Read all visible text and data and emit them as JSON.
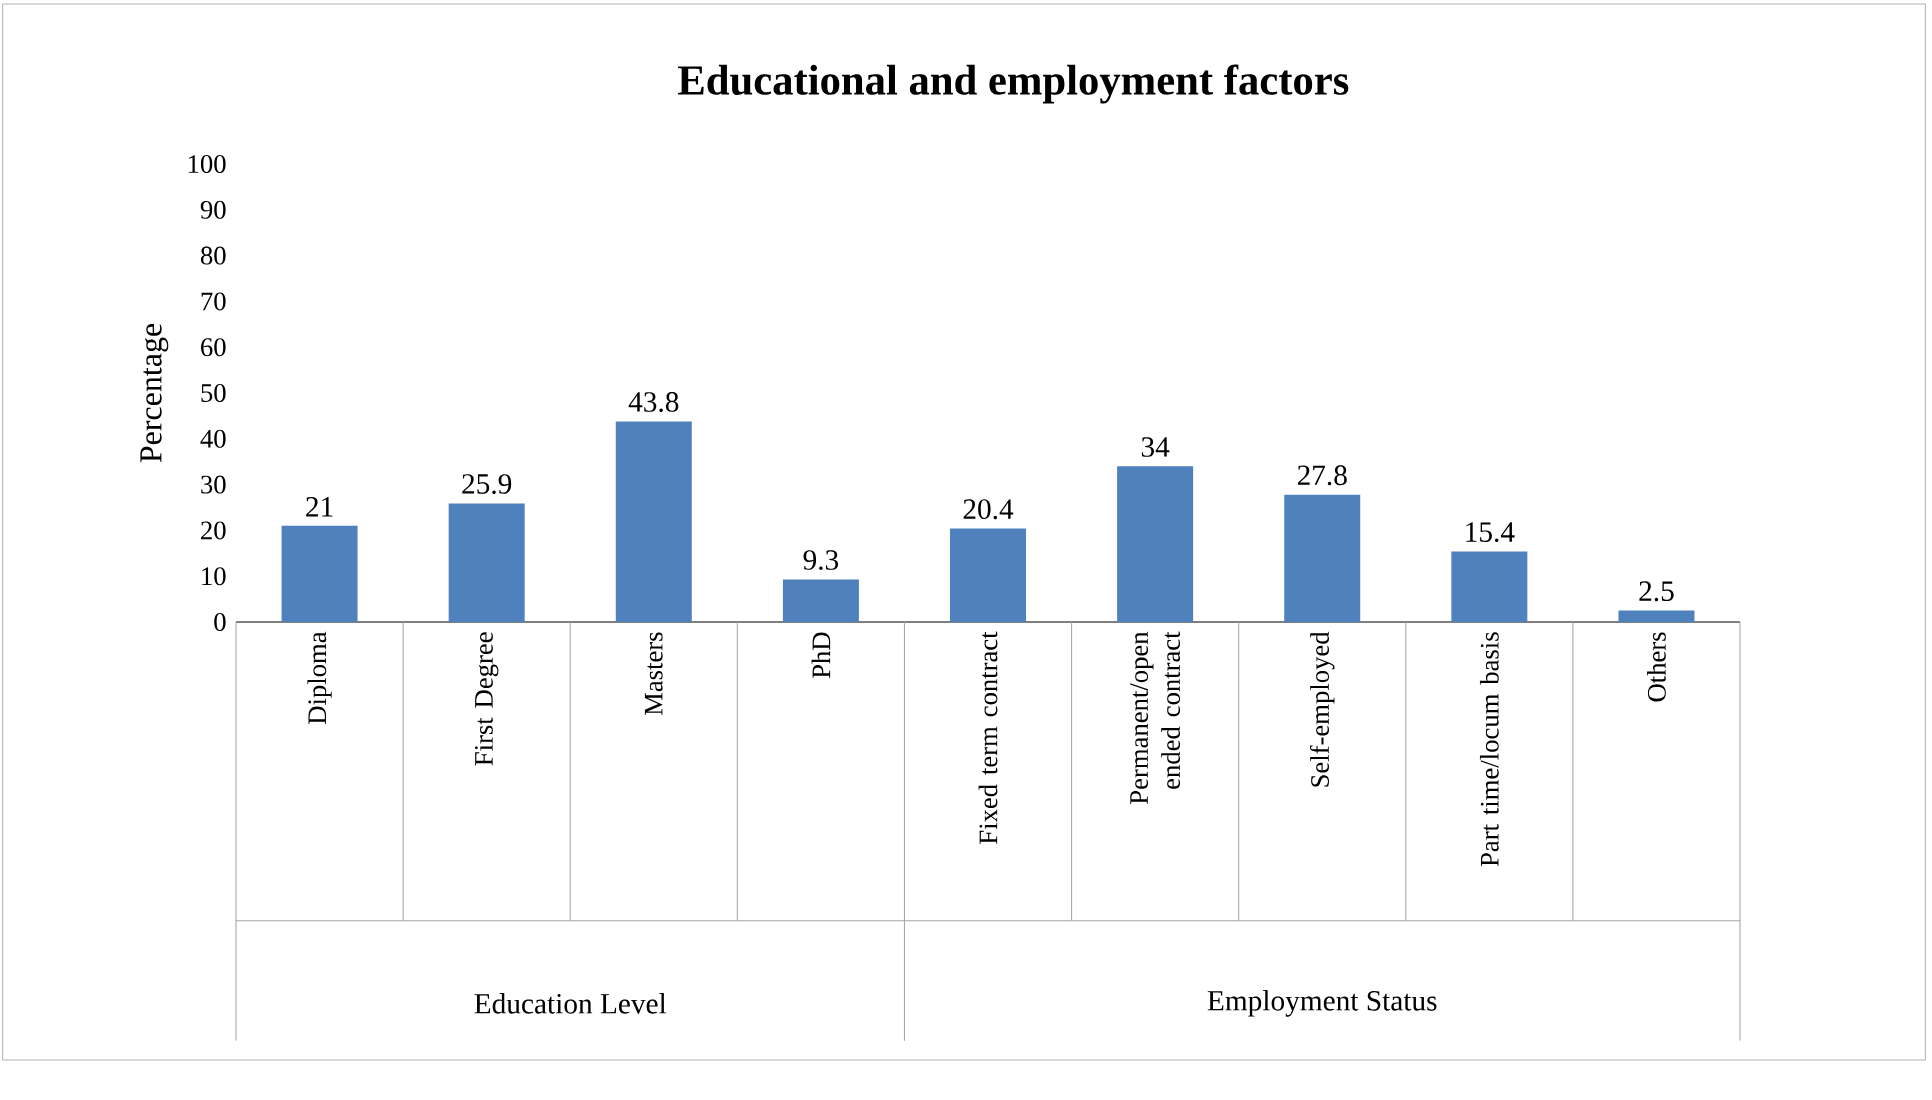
{
  "chart_data": {
    "type": "bar",
    "title": "Educational and employment factors",
    "ylabel": "Percentage",
    "categories": [
      "Diploma",
      "First Degree",
      "Masters",
      "PhD",
      "Fixed term contract",
      "Permanent/open ended contract",
      "Self-employed",
      "Part time/locum basis",
      "Others"
    ],
    "values": [
      21,
      25.9,
      43.8,
      9.3,
      20.4,
      34,
      27.8,
      15.4,
      2.5
    ],
    "color": "#4f81bd",
    "ylim": [
      0,
      100
    ],
    "yticks": [
      0,
      10,
      20,
      30,
      40,
      50,
      60,
      70,
      80,
      90,
      100
    ],
    "grid": false,
    "data_labels": true,
    "annotations": [
      "Education Level",
      "Employment Status"
    ]
  }
}
